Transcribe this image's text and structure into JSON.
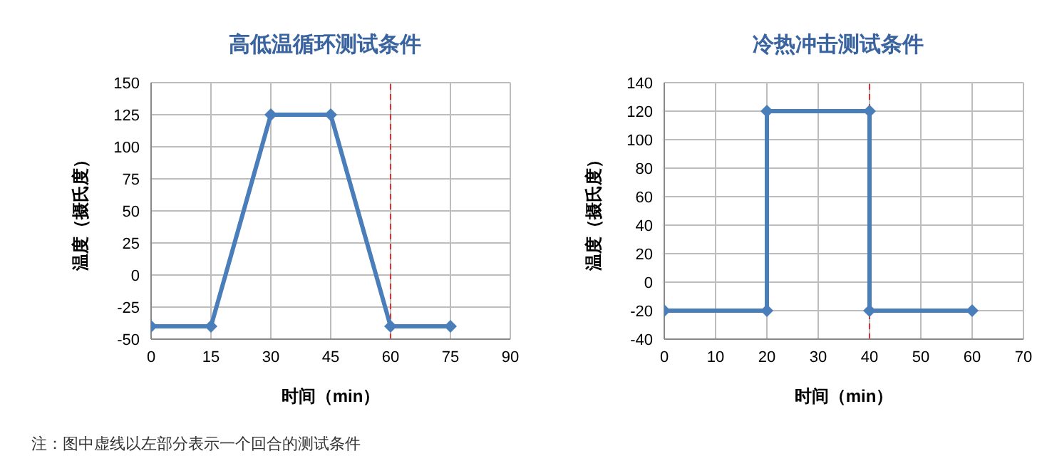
{
  "chart_data": [
    {
      "type": "line",
      "title": "高低温循环测试条件",
      "xlabel": "时间（min）",
      "ylabel": "温度（摄氏度）",
      "annotations": [
        "注：图中虚线以左部分表示一个回合的测试条件"
      ],
      "x": [
        0,
        15,
        30,
        45,
        60,
        75
      ],
      "series": [
        {
          "color": "#4a7ebb",
          "values": [
            -40,
            -40,
            125,
            125,
            -40,
            -40
          ]
        }
      ],
      "xlim": [
        0,
        90
      ],
      "xticks": [
        0,
        15,
        30,
        45,
        60,
        75,
        90
      ],
      "ylim": [
        -50,
        150
      ],
      "yticks": [
        -50,
        -25,
        0,
        25,
        50,
        75,
        100,
        125,
        150
      ],
      "ref_lines": [
        {
          "axis": "x",
          "value": 60,
          "color": "#e03030",
          "line_style": "dashed"
        }
      ],
      "grid": true,
      "marker": "diamond",
      "legend": false
    },
    {
      "type": "line",
      "title": "冷热冲击测试条件",
      "xlabel": "时间（min）",
      "ylabel": "温度（摄氏度）",
      "x": [
        0,
        20,
        20,
        40,
        40,
        60
      ],
      "series": [
        {
          "color": "#4a7ebb",
          "values": [
            -20,
            -20,
            120,
            120,
            -20,
            -20
          ]
        }
      ],
      "xlim": [
        0,
        70
      ],
      "xticks": [
        0,
        10,
        20,
        30,
        40,
        50,
        60,
        70
      ],
      "ylim": [
        -40,
        140
      ],
      "yticks": [
        -40,
        -20,
        0,
        20,
        40,
        60,
        80,
        100,
        120,
        140
      ],
      "ref_lines": [
        {
          "axis": "x",
          "value": 40,
          "color": "#e03030",
          "line_style": "dashed"
        }
      ],
      "grid": true,
      "marker": "diamond",
      "legend": false
    }
  ]
}
